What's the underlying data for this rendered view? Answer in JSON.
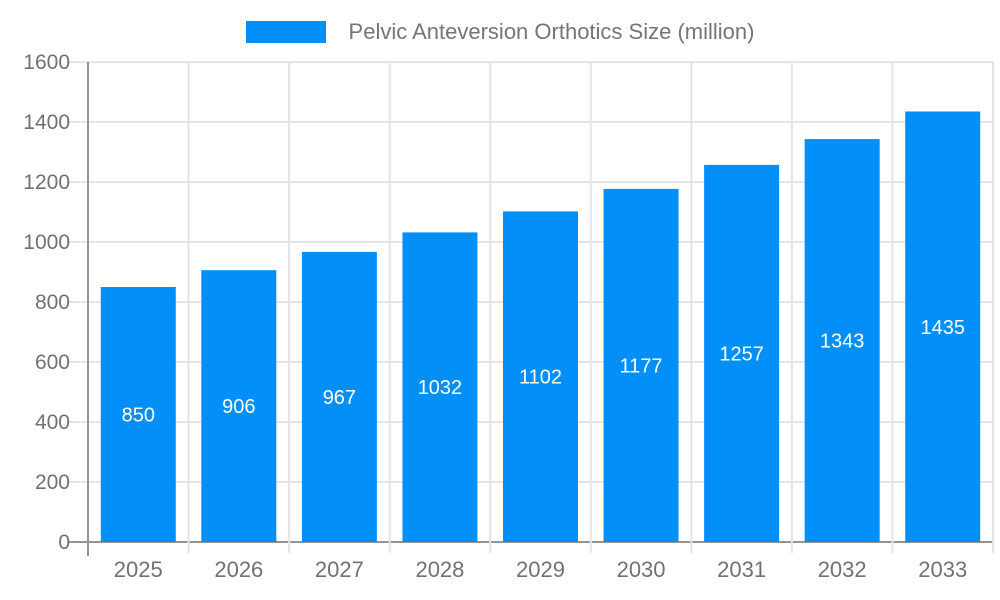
{
  "chart_data": {
    "type": "bar",
    "title": "",
    "categories": [
      "2025",
      "2026",
      "2027",
      "2028",
      "2029",
      "2030",
      "2031",
      "2032",
      "2033"
    ],
    "series": [
      {
        "name": "Pelvic Anteversion Orthotics Size (million)",
        "values": [
          850,
          906,
          967,
          1032,
          1102,
          1177,
          1257,
          1343,
          1435
        ]
      }
    ],
    "xlabel": "",
    "ylabel": "",
    "ylim": [
      0,
      1600
    ],
    "yticks": [
      0,
      200,
      400,
      600,
      800,
      1000,
      1200,
      1400,
      1600
    ],
    "grid": true,
    "legend_position": "top-center",
    "value_labels": "inside-middle"
  },
  "colors": {
    "bar": "#0290f8",
    "grid_line": "#e4e4e4",
    "axis_line": "#949494",
    "axis_tick_label": "#717171",
    "legend_text": "#757575",
    "value_label": "#ffffff",
    "background": "#ffffff"
  }
}
